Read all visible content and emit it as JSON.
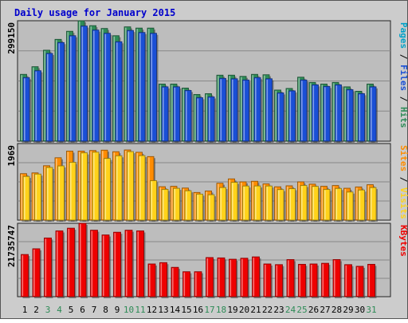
{
  "chart_data": {
    "type": "bar",
    "title": "Daily usage for January 2015",
    "categories": [
      "1",
      "2",
      "3",
      "4",
      "5",
      "6",
      "7",
      "8",
      "9",
      "10",
      "11",
      "12",
      "13",
      "14",
      "15",
      "16",
      "17",
      "18",
      "19",
      "20",
      "21",
      "22",
      "23",
      "24",
      "25",
      "26",
      "27",
      "28",
      "29",
      "30",
      "31"
    ],
    "weekend_days": [
      "3",
      "4",
      "10",
      "11",
      "17",
      "18",
      "24",
      "25",
      "31"
    ],
    "colors": {
      "frame_border": "#555555",
      "panel_background": "#bdbdbd",
      "gridline": "#888888",
      "title": "#0000cc",
      "hits": "#2e8b57",
      "files": "#1a4fd6",
      "pages": "#00a0c8",
      "visits": "#ffd21a",
      "sites": "#ff8c00",
      "kbytes": "#ee0000",
      "weekday_label": "#000000",
      "weekend_label": "#2e8b57"
    },
    "panels": [
      {
        "id": "hits-files-pages",
        "axis_max_label": "299150",
        "axis_max": 299150,
        "legend": [
          {
            "text": "Pages",
            "color": "#00a0c8"
          },
          {
            "text": " / ",
            "color": "#000000"
          },
          {
            "text": "Files",
            "color": "#1a4fd6"
          },
          {
            "text": " / ",
            "color": "#000000"
          },
          {
            "text": "Hits",
            "color": "#2e8b57"
          }
        ],
        "series": [
          {
            "name": "Hits",
            "color": "#2e8b57",
            "values": [
              166000,
              185000,
              226000,
              253000,
              273000,
              299150,
              287000,
              280000,
              262000,
              284000,
              281000,
              281000,
              142000,
              142000,
              132000,
              116000,
              118000,
              164000,
              164000,
              161000,
              166000,
              165000,
              127000,
              131000,
              159000,
              146000,
              142000,
              146000,
              135000,
              124000,
              142000
            ]
          },
          {
            "name": "Files",
            "color": "#1a4fd6",
            "values": [
              158000,
              175000,
              218000,
              245000,
              262000,
              286000,
              276000,
              268000,
              247000,
              275000,
              270000,
              268000,
              135000,
              135000,
              126000,
              108000,
              110000,
              156000,
              155000,
              152000,
              158000,
              155000,
              120000,
              125000,
              152000,
              140000,
              136000,
              140000,
              128000,
              118000,
              135000
            ]
          }
        ]
      },
      {
        "id": "visits-sites",
        "axis_max_label": "1969",
        "axis_max": 1969,
        "legend": [
          {
            "text": "Sites",
            "color": "#ff8c00"
          },
          {
            "text": " / ",
            "color": "#000000"
          },
          {
            "text": "Visits",
            "color": "#ffd21a"
          }
        ],
        "series": [
          {
            "name": "Sites",
            "color": "#ff8c00",
            "values": [
              1195,
              1215,
              1399,
              1604,
              1775,
              1775,
              1790,
              1800,
              1760,
              1805,
              1745,
              1635,
              860,
              870,
              825,
              712,
              750,
              950,
              1061,
              985,
              1000,
              932,
              858,
              883,
              985,
              926,
              871,
              890,
              820,
              854,
              911
            ]
          },
          {
            "name": "Visits",
            "color": "#ffd21a",
            "values": [
              1125,
              1185,
              1355,
              1395,
              1488,
              1730,
              1748,
              1587,
              1656,
              1762,
              1660,
              1015,
              792,
              818,
              756,
              670,
              654,
              839,
              972,
              878,
              880,
              878,
              786,
              810,
              892,
              868,
              790,
              815,
              723,
              775,
              838
            ]
          }
        ]
      },
      {
        "id": "kbytes",
        "axis_max_label": "21735747",
        "axis_max": 21735747,
        "legend": [
          {
            "text": "KBytes",
            "color": "#ee0000"
          }
        ],
        "series": [
          {
            "name": "KBytes",
            "color": "#ee0000",
            "values": [
              12500000,
              14200000,
              17400000,
              19500000,
              20300000,
              21735747,
              19700000,
              18300000,
              19100000,
              19700000,
              19500000,
              9700000,
              10100000,
              8700000,
              7400000,
              7400000,
              11600000,
              11500000,
              11100000,
              11400000,
              11800000,
              9700000,
              9500000,
              11000000,
              9600000,
              9700000,
              9900000,
              11000000,
              9500000,
              9000000,
              9600000
            ]
          }
        ]
      }
    ]
  }
}
